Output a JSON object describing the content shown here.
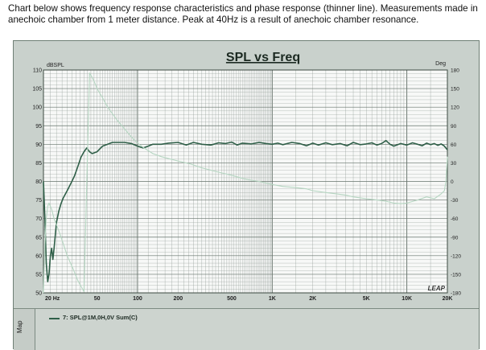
{
  "caption": {
    "line1": "Chart below shows frequency response characteristics and phase response (thinner line). Measurements made in",
    "line2": "anechoic chamber from 1 meter distance. Peak at 40Hz is a result of anechoic chamber resonance."
  },
  "panel": {
    "map_label": "Map",
    "legend_label": "7: SPL@1M,0H,0V Sum(C)",
    "watermark": "LEAP"
  },
  "colors": {
    "spl_line": "#2f5f48",
    "phase_line": "#b6d6c2",
    "grid": "#8f9a93",
    "plot_bg": "#f7f8f7",
    "title": "#1c2a22"
  },
  "chart_data": {
    "type": "line",
    "title": "SPL vs Freq",
    "y_left_label": "dBSPL",
    "y_right_label": "Deg",
    "x_scale": "log",
    "xlim": [
      20,
      20000
    ],
    "ylim_left": [
      50,
      110
    ],
    "ylim_right": [
      -180,
      180
    ],
    "grid": true,
    "x_ticks": [
      {
        "value": 20,
        "label": "20 Hz"
      },
      {
        "value": 50,
        "label": "50"
      },
      {
        "value": 100,
        "label": "100"
      },
      {
        "value": 200,
        "label": "200"
      },
      {
        "value": 500,
        "label": "500"
      },
      {
        "value": 1000,
        "label": "1K"
      },
      {
        "value": 2000,
        "label": "2K"
      },
      {
        "value": 5000,
        "label": "5K"
      },
      {
        "value": 10000,
        "label": "10K"
      },
      {
        "value": 20000,
        "label": "20K"
      }
    ],
    "y_left_ticks": [
      110,
      105,
      100,
      95,
      90,
      85,
      80,
      75,
      70,
      65,
      60,
      55,
      50
    ],
    "y_right_ticks": [
      180,
      150,
      120,
      90,
      60,
      30,
      0,
      -30,
      -60,
      -90,
      -120,
      -150,
      -180
    ],
    "series": [
      {
        "name": "7: SPL@1M,0H,0V Sum(C)",
        "axis": "left",
        "x": [
          20,
          20.5,
          21,
          21.5,
          22,
          22.5,
          23,
          23.5,
          24,
          25,
          26,
          27,
          28,
          30,
          32,
          34,
          36,
          38,
          40,
          42,
          44,
          46,
          50,
          55,
          60,
          65,
          70,
          80,
          90,
          100,
          110,
          120,
          130,
          150,
          170,
          200,
          230,
          260,
          300,
          350,
          400,
          450,
          500,
          550,
          600,
          700,
          800,
          900,
          1000,
          1100,
          1200,
          1400,
          1600,
          1800,
          2000,
          2200,
          2500,
          2800,
          3200,
          3600,
          4000,
          4500,
          5000,
          5500,
          6000,
          6500,
          7000,
          7500,
          8000,
          9000,
          10000,
          11000,
          12000,
          13000,
          14000,
          15000,
          16000,
          17000,
          18000,
          19000,
          20000
        ],
        "y": [
          80,
          70,
          58,
          53,
          55,
          60,
          62,
          59,
          62,
          69,
          72,
          74,
          75.5,
          77.5,
          79.5,
          81.5,
          84,
          86.5,
          88,
          89,
          88,
          87.5,
          88,
          89.5,
          90,
          90.5,
          90.5,
          90.5,
          90.2,
          89.5,
          89,
          89.5,
          90,
          90,
          90.3,
          90.5,
          89.8,
          90.5,
          90,
          89.8,
          90.4,
          90.2,
          90.6,
          89.8,
          90.3,
          90.1,
          90.5,
          90.2,
          90,
          90.3,
          89.9,
          90.5,
          90.2,
          89.6,
          90.3,
          89.8,
          90.4,
          89.9,
          90.2,
          89.6,
          90.5,
          89.9,
          90.1,
          90.4,
          89.8,
          90.2,
          91,
          90,
          89.5,
          90.2,
          89.8,
          90.4,
          90,
          89.6,
          90.3,
          89.9,
          90.2,
          89.7,
          90.1,
          89.5,
          88.5
        ]
      },
      {
        "name": "",
        "axis": "right",
        "x": [
          20,
          20.5,
          21,
          21.5,
          22,
          23,
          24,
          26,
          28,
          30,
          33,
          36,
          40,
          44,
          46,
          48,
          50,
          55,
          60,
          70,
          80,
          90,
          100,
          110,
          130,
          150,
          200,
          250,
          300,
          400,
          500,
          600,
          700,
          800,
          1000,
          1200,
          1500,
          1800,
          2000,
          2500,
          3000,
          3500,
          4000,
          5000,
          6000,
          7000,
          8000,
          9000,
          10000,
          12000,
          14000,
          16000,
          18000,
          19000,
          19500,
          20000
        ],
        "y": [
          -180,
          -100,
          -60,
          -40,
          -35,
          -45,
          -60,
          -80,
          -100,
          -120,
          -140,
          -160,
          -178,
          175,
          168,
          160,
          150,
          135,
          120,
          100,
          85,
          72,
          62,
          55,
          45,
          40,
          33,
          28,
          22,
          15,
          10,
          5,
          2,
          0,
          -5,
          -8,
          -10,
          -12,
          -15,
          -18,
          -20,
          -22,
          -25,
          -28,
          -30,
          -32,
          -35,
          -36,
          -35,
          -30,
          -25,
          -28,
          -20,
          -15,
          0,
          40
        ]
      }
    ]
  }
}
